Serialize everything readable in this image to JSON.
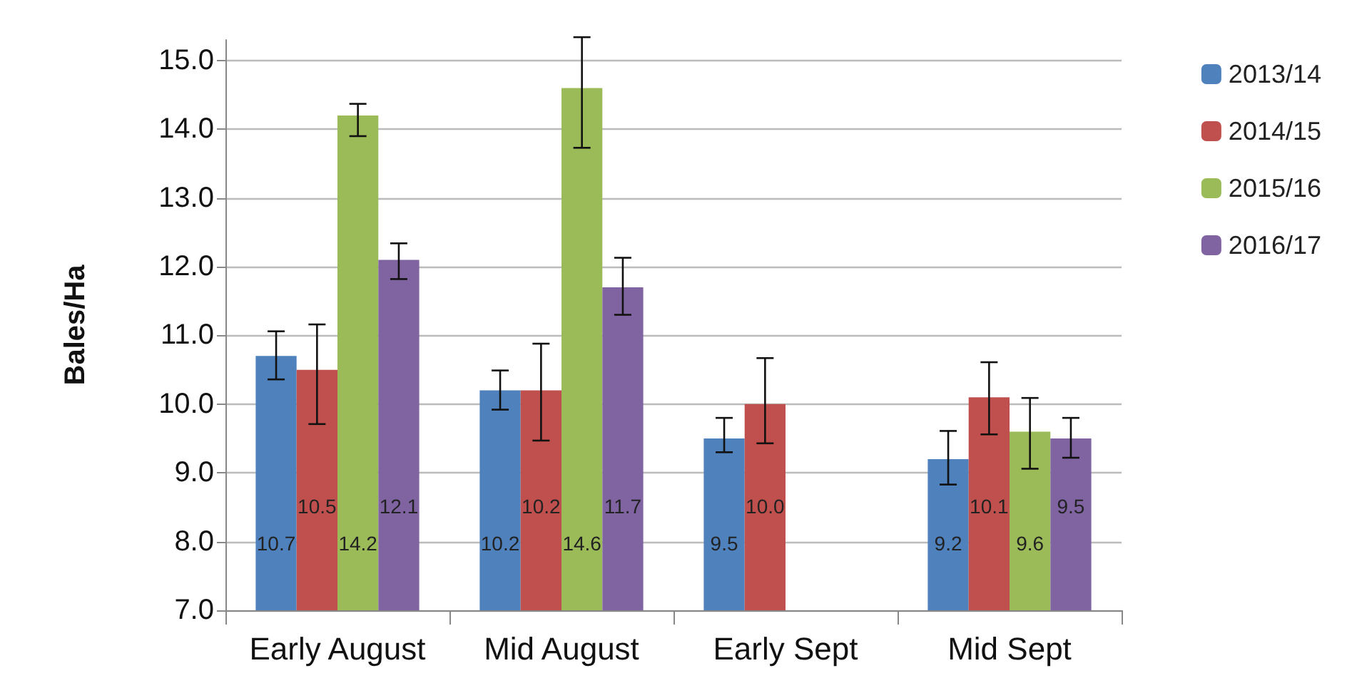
{
  "chart_data": {
    "type": "bar",
    "ylabel": "Bales/Ha",
    "categories": [
      "Early August",
      "Mid August",
      "Early Sept",
      "Mid Sept"
    ],
    "series": [
      {
        "name": "2013/14",
        "color": "#4f81bd",
        "values": [
          10.7,
          10.2,
          9.5,
          9.2
        ],
        "value_labels": [
          "10.7",
          "10.2",
          "9.5",
          "9.2"
        ],
        "errors": [
          [
            10.36,
            11.06
          ],
          [
            9.92,
            10.49
          ],
          [
            9.3,
            9.8
          ],
          [
            8.83,
            9.61
          ]
        ]
      },
      {
        "name": "2014/15",
        "color": "#c0504d",
        "values": [
          10.5,
          10.2,
          10.0,
          10.1
        ],
        "value_labels": [
          "10.5",
          "10.2",
          "10.0",
          "10.1"
        ],
        "errors": [
          [
            9.71,
            11.16
          ],
          [
            9.47,
            10.88
          ],
          [
            9.43,
            10.67
          ],
          [
            9.56,
            10.61
          ]
        ]
      },
      {
        "name": "2015/16",
        "color": "#9bbb59",
        "values": [
          14.2,
          14.6,
          null,
          9.6
        ],
        "value_labels": [
          "14.2",
          "14.6",
          null,
          "9.6"
        ],
        "errors": [
          [
            13.9,
            14.37
          ],
          [
            13.73,
            15.34
          ],
          null,
          [
            9.06,
            10.09
          ]
        ]
      },
      {
        "name": "2016/17",
        "color": "#8064a2",
        "values": [
          12.1,
          11.7,
          null,
          9.5
        ],
        "value_labels": [
          "12.1",
          "11.7",
          null,
          "9.5"
        ],
        "errors": [
          [
            11.82,
            12.34
          ],
          [
            11.3,
            12.13
          ],
          null,
          [
            9.22,
            9.8
          ]
        ]
      }
    ],
    "ylim": [
      7,
      15.3
    ],
    "yticks": [
      {
        "value": 7,
        "label": "7.0"
      },
      {
        "value": 8,
        "label": "8.0"
      },
      {
        "value": 9,
        "label": "9.0"
      },
      {
        "value": 10,
        "label": "10.0"
      },
      {
        "value": 11,
        "label": "11.0"
      },
      {
        "value": 12,
        "label": "12.0"
      },
      {
        "value": 13,
        "label": "13.0"
      },
      {
        "value": 14,
        "label": "14.0"
      },
      {
        "value": 15,
        "label": "15.0"
      }
    ],
    "grid": "y",
    "legend": "top right"
  }
}
